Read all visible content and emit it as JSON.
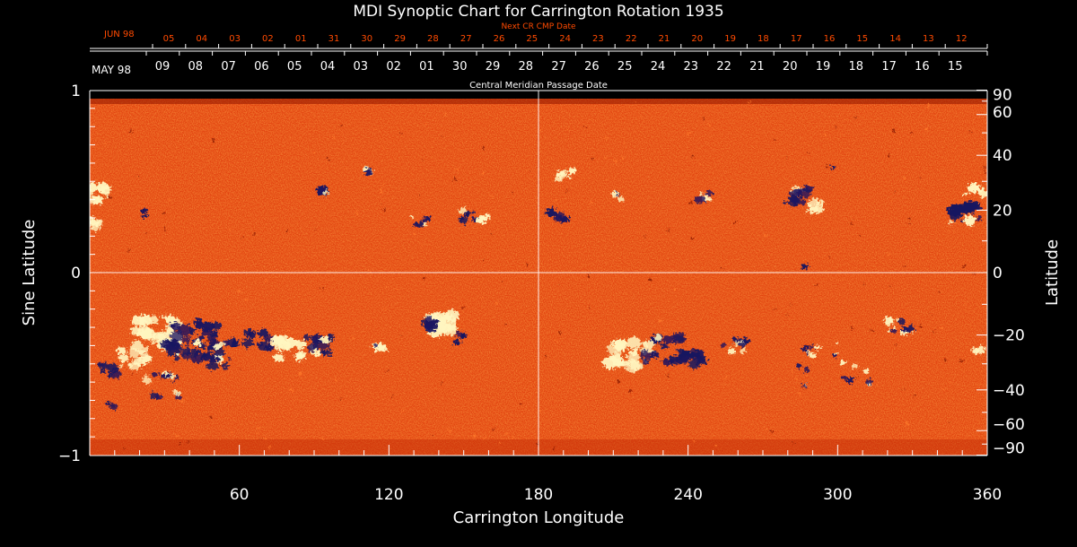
{
  "title": "MDI Synoptic Chart for Carrington Rotation 1935",
  "next_cr": {
    "label": "Next CR CMP Date",
    "month_label": "JUN 98",
    "days": [
      "05",
      "04",
      "03",
      "02",
      "01",
      "31",
      "30",
      "29",
      "28",
      "27",
      "26",
      "25",
      "24",
      "23",
      "22",
      "21",
      "20",
      "19",
      "18",
      "17",
      "16",
      "15",
      "14",
      "13",
      "12"
    ],
    "color": "#ff4a00"
  },
  "cmp": {
    "label": "Central Meridian Passage Date",
    "month_label": "MAY 98",
    "days": [
      "09",
      "08",
      "07",
      "06",
      "05",
      "04",
      "03",
      "02",
      "01",
      "30",
      "29",
      "28",
      "27",
      "26",
      "25",
      "24",
      "23",
      "22",
      "21",
      "20",
      "19",
      "18",
      "17",
      "16",
      "15"
    ]
  },
  "axes": {
    "x_label": "Carrington Longitude",
    "x_ticks": [
      "60",
      "120",
      "180",
      "240",
      "300",
      "360"
    ],
    "left_label": "Sine Latitude",
    "left_ticks": [
      "1",
      "0",
      "−1"
    ],
    "right_label": "Latitude",
    "right_ticks": [
      "90",
      "60",
      "40",
      "20",
      "0",
      "−20",
      "−40",
      "−60",
      "−90"
    ]
  },
  "colors": {
    "background": "#000000",
    "map_base": "#e8470c",
    "positive_polarity": "#fff6c0",
    "negative_polarity": "#1a1460",
    "noise_dark": "#8a1500",
    "noise_light": "#ff7a2a"
  }
}
